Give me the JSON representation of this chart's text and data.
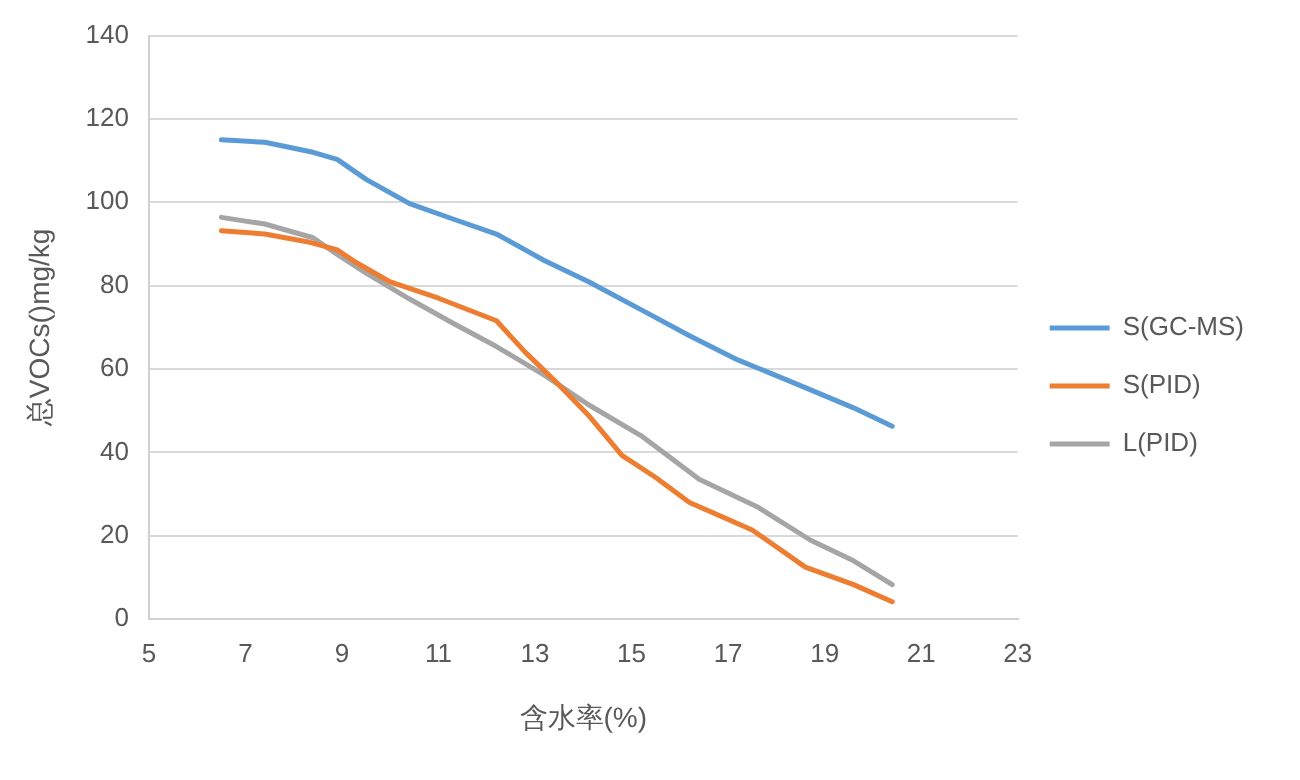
{
  "chart_data": {
    "type": "line",
    "xlabel": "含水率(%)",
    "ylabel": "总VOCs()mg/kg",
    "xlim": [
      5,
      23
    ],
    "xticks": [
      5,
      7,
      9,
      11,
      13,
      15,
      17,
      19,
      21,
      23
    ],
    "ylim": [
      0,
      140
    ],
    "yticks": [
      0,
      20,
      40,
      60,
      80,
      100,
      120,
      140
    ],
    "grid": "y",
    "legend": "right",
    "marker": "none",
    "series": [
      {
        "name": "S(GC-MS)",
        "color": "#5b9bd5",
        "x": [
          6.5,
          7.4,
          8.4,
          8.9,
          9.5,
          10.4,
          11.3,
          12.2,
          13.2,
          14.1,
          15.3,
          16.2,
          17.2,
          18.3,
          19.6,
          20.4
        ],
        "values": [
          115,
          114.4,
          112,
          110.3,
          105.5,
          99.7,
          96,
          92.4,
          86,
          81,
          73.6,
          68,
          62.2,
          57,
          50.7,
          46.3
        ]
      },
      {
        "name": "S(PID)",
        "color": "#ed7d31",
        "x": [
          6.5,
          7.4,
          8.3,
          8.9,
          9.3,
          10,
          11,
          12.2,
          12.8,
          13.4,
          14.1,
          14.8,
          15.5,
          16.2,
          17.5,
          18.6,
          19.6,
          20.4
        ],
        "values": [
          93.2,
          92.4,
          90.5,
          88.6,
          85.5,
          80.9,
          77,
          71.6,
          64,
          57.3,
          49,
          39.3,
          34,
          28,
          21.4,
          12.5,
          8.3,
          4.2
        ]
      },
      {
        "name": "L(PID)",
        "color": "#a5a5a5",
        "x": [
          6.5,
          7.4,
          8.4,
          8.9,
          9.5,
          10.4,
          11.3,
          12.2,
          13.2,
          14.1,
          15.2,
          16.4,
          17.6,
          18.7,
          19.6,
          20.4
        ],
        "values": [
          96.4,
          94.8,
          91.5,
          87.5,
          83,
          76.8,
          71,
          65.4,
          58.5,
          51.5,
          44,
          33.6,
          27,
          19,
          14,
          8.3
        ]
      }
    ]
  }
}
